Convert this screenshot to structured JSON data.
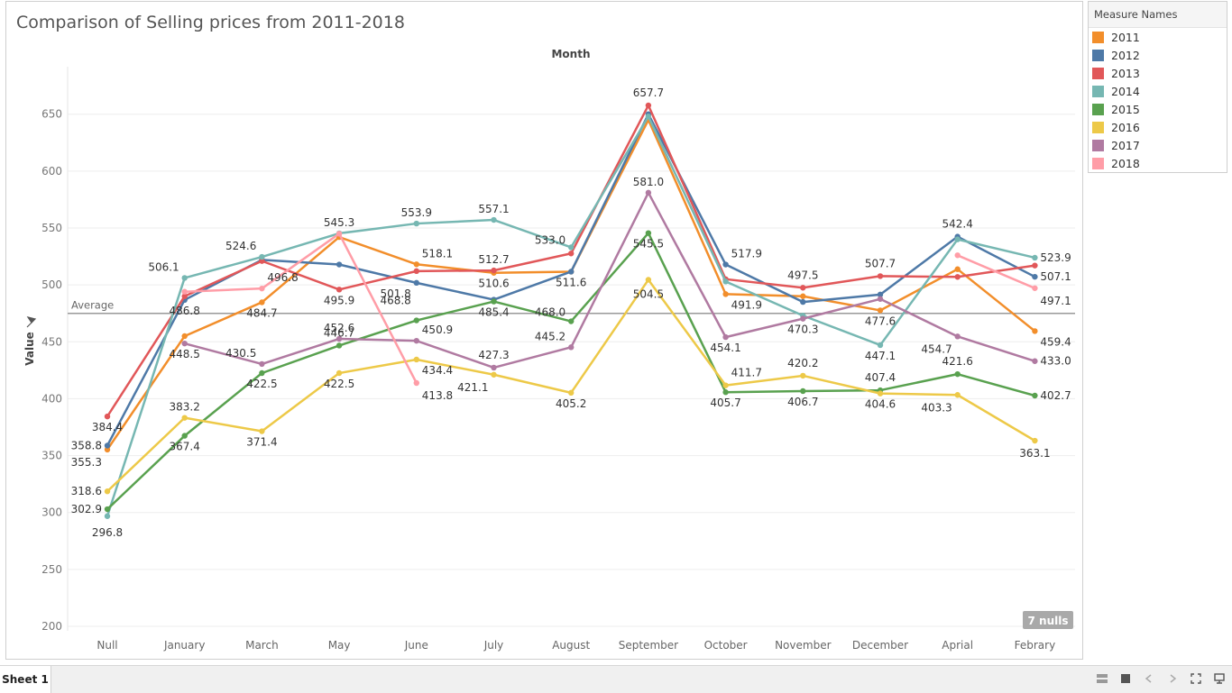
{
  "title": "Comparison of Selling prices from 2011-2018",
  "sheet_tab": "Sheet 1",
  "null_badge": "7 nulls",
  "legend": {
    "title": "Measure Names",
    "items": [
      {
        "label": "2011",
        "color": "#f28e2b"
      },
      {
        "label": "2012",
        "color": "#4e79a7"
      },
      {
        "label": "2013",
        "color": "#e15759"
      },
      {
        "label": "2014",
        "color": "#76b7b2"
      },
      {
        "label": "2015",
        "color": "#59a14f"
      },
      {
        "label": "2016",
        "color": "#edc948"
      },
      {
        "label": "2017",
        "color": "#b07aa1"
      },
      {
        "label": "2018",
        "color": "#ff9da7"
      }
    ]
  },
  "bottom_icons": [
    "grid-view-icon",
    "stop-icon",
    "first-page-icon",
    "last-page-icon",
    "fit-icon",
    "presentation-icon"
  ],
  "chart_data": {
    "type": "line",
    "xlabel": "Month",
    "ylabel": "Value",
    "ylim": [
      200,
      680
    ],
    "yticks": [
      200,
      250,
      300,
      350,
      400,
      450,
      500,
      550,
      600,
      650
    ],
    "grid": true,
    "reference_line": {
      "label": "Average",
      "value": 475
    },
    "categories": [
      "Null",
      "January",
      "March",
      "May",
      "June",
      "July",
      "August",
      "September",
      "October",
      "November",
      "December",
      "Aprial",
      "Febrary"
    ],
    "series": [
      {
        "name": "2011",
        "color": "#f28e2b",
        "values": [
          355.3,
          455,
          484.7,
          542,
          518.1,
          510.6,
          511.6,
          645,
          491.9,
          490,
          477.6,
          513.8,
          459.4
        ]
      },
      {
        "name": "2012",
        "color": "#4e79a7",
        "values": [
          358.8,
          486.8,
          522,
          517.9,
          501.8,
          487,
          511.6,
          650,
          517.9,
          485,
          491.5,
          542.4,
          507.1
        ]
      },
      {
        "name": "2013",
        "color": "#e15759",
        "values": [
          384.4,
          490,
          521,
          495.9,
          512.1,
          512.7,
          527.6,
          657.7,
          505,
          497.5,
          507.7,
          507,
          517
        ]
      },
      {
        "name": "2014",
        "color": "#76b7b2",
        "values": [
          296.8,
          506.1,
          524.6,
          545.3,
          553.9,
          557.1,
          533.0,
          648,
          503,
          473,
          447.1,
          540,
          523.9
        ]
      },
      {
        "name": "2015",
        "color": "#59a14f",
        "values": [
          302.9,
          367.4,
          422.5,
          446.7,
          468.8,
          485.4,
          468.0,
          545.5,
          405.7,
          406.7,
          407.4,
          421.6,
          402.7
        ]
      },
      {
        "name": "2016",
        "color": "#edc948",
        "values": [
          318.6,
          383.2,
          371.4,
          422.5,
          434.4,
          421.1,
          405.2,
          504.5,
          411.7,
          420.2,
          404.6,
          403.3,
          363.1
        ]
      },
      {
        "name": "2017",
        "color": "#b07aa1",
        "values": [
          null,
          448.5,
          430.5,
          452.6,
          450.9,
          427.3,
          445.2,
          581.0,
          454.1,
          470.3,
          487.6,
          454.7,
          433.0
        ]
      },
      {
        "name": "2018",
        "color": "#ff9da7",
        "values": [
          null,
          494,
          496.8,
          545,
          413.8,
          null,
          null,
          null,
          null,
          null,
          null,
          526,
          497.1
        ]
      }
    ],
    "labels": [
      {
        "text": "384.4",
        "cat": 0,
        "v": 384.4,
        "anchor": "middle",
        "dy": 16
      },
      {
        "text": "358.8",
        "cat": 0,
        "v": 358.8,
        "anchor": "end",
        "dy": 4
      },
      {
        "text": "355.3",
        "cat": 0,
        "v": 355.3,
        "anchor": "end",
        "dy": 18
      },
      {
        "text": "318.6",
        "cat": 0,
        "v": 318.6,
        "anchor": "end",
        "dy": 4
      },
      {
        "text": "302.9",
        "cat": 0,
        "v": 302.9,
        "anchor": "end",
        "dy": 4
      },
      {
        "text": "296.8",
        "cat": 0,
        "v": 296.8,
        "anchor": "middle",
        "dy": 22
      },
      {
        "text": "506.1",
        "cat": 1,
        "v": 506.1,
        "anchor": "end",
        "dy": -8
      },
      {
        "text": "486.8",
        "cat": 1,
        "v": 486.8,
        "anchor": "middle",
        "dy": 16
      },
      {
        "text": "448.5",
        "cat": 1,
        "v": 448.5,
        "anchor": "middle",
        "dy": 16
      },
      {
        "text": "383.2",
        "cat": 1,
        "v": 383.2,
        "anchor": "middle",
        "dy": -8
      },
      {
        "text": "367.4",
        "cat": 1,
        "v": 367.4,
        "anchor": "middle",
        "dy": 16
      },
      {
        "text": "524.6",
        "cat": 2,
        "v": 524.6,
        "anchor": "end",
        "dy": -8
      },
      {
        "text": "496.8",
        "cat": 2,
        "v": 496.8,
        "anchor": "start",
        "dy": -8
      },
      {
        "text": "484.7",
        "cat": 2,
        "v": 484.7,
        "anchor": "middle",
        "dy": 16
      },
      {
        "text": "430.5",
        "cat": 2,
        "v": 430.5,
        "anchor": "end",
        "dy": -8
      },
      {
        "text": "422.5",
        "cat": 2,
        "v": 422.5,
        "anchor": "middle",
        "dy": 16
      },
      {
        "text": "371.4",
        "cat": 2,
        "v": 371.4,
        "anchor": "middle",
        "dy": 16
      },
      {
        "text": "545.3",
        "cat": 3,
        "v": 545.3,
        "anchor": "middle",
        "dy": -8
      },
      {
        "text": "495.9",
        "cat": 3,
        "v": 495.9,
        "anchor": "middle",
        "dy": 16
      },
      {
        "text": "452.6",
        "cat": 3,
        "v": 452.6,
        "anchor": "middle",
        "dy": -8
      },
      {
        "text": "446.7",
        "cat": 3,
        "v": 446.7,
        "anchor": "middle",
        "dy": -10
      },
      {
        "text": "422.5",
        "cat": 3,
        "v": 422.5,
        "anchor": "middle",
        "dy": 16
      },
      {
        "text": "553.9",
        "cat": 4,
        "v": 553.9,
        "anchor": "middle",
        "dy": -8
      },
      {
        "text": "518.1",
        "cat": 4,
        "v": 518.1,
        "anchor": "start",
        "dy": -8
      },
      {
        "text": "501.8",
        "cat": 4,
        "v": 501.8,
        "anchor": "end",
        "dy": 16
      },
      {
        "text": "468.8",
        "cat": 4,
        "v": 468.8,
        "anchor": "end",
        "dy": -18
      },
      {
        "text": "450.9",
        "cat": 4,
        "v": 450.9,
        "anchor": "start",
        "dy": -8
      },
      {
        "text": "434.4",
        "cat": 4,
        "v": 434.4,
        "anchor": "start",
        "dy": 16
      },
      {
        "text": "413.8",
        "cat": 4,
        "v": 413.8,
        "anchor": "start",
        "dy": 18
      },
      {
        "text": "557.1",
        "cat": 5,
        "v": 557.1,
        "anchor": "middle",
        "dy": -8
      },
      {
        "text": "512.7",
        "cat": 5,
        "v": 512.7,
        "anchor": "middle",
        "dy": -8
      },
      {
        "text": "510.6",
        "cat": 5,
        "v": 510.6,
        "anchor": "middle",
        "dy": 16
      },
      {
        "text": "485.4",
        "cat": 5,
        "v": 485.4,
        "anchor": "middle",
        "dy": 16
      },
      {
        "text": "427.3",
        "cat": 5,
        "v": 427.3,
        "anchor": "middle",
        "dy": -10
      },
      {
        "text": "421.1",
        "cat": 5,
        "v": 421.1,
        "anchor": "end",
        "dy": 18
      },
      {
        "text": "533.0",
        "cat": 6,
        "v": 533.0,
        "anchor": "end",
        "dy": -4
      },
      {
        "text": "511.6",
        "cat": 6,
        "v": 511.6,
        "anchor": "middle",
        "dy": 16
      },
      {
        "text": "468.0",
        "cat": 6,
        "v": 468.0,
        "anchor": "end",
        "dy": -6
      },
      {
        "text": "445.2",
        "cat": 6,
        "v": 445.2,
        "anchor": "end",
        "dy": -8
      },
      {
        "text": "405.2",
        "cat": 6,
        "v": 405.2,
        "anchor": "middle",
        "dy": 16
      },
      {
        "text": "657.7",
        "cat": 7,
        "v": 657.7,
        "anchor": "middle",
        "dy": -10
      },
      {
        "text": "581.0",
        "cat": 7,
        "v": 581.0,
        "anchor": "middle",
        "dy": -8
      },
      {
        "text": "545.5",
        "cat": 7,
        "v": 545.5,
        "anchor": "middle",
        "dy": 16
      },
      {
        "text": "504.5",
        "cat": 7,
        "v": 504.5,
        "anchor": "middle",
        "dy": 20
      },
      {
        "text": "517.9",
        "cat": 8,
        "v": 517.9,
        "anchor": "start",
        "dy": -8
      },
      {
        "text": "491.9",
        "cat": 8,
        "v": 491.9,
        "anchor": "start",
        "dy": 16
      },
      {
        "text": "454.1",
        "cat": 8,
        "v": 454.1,
        "anchor": "middle",
        "dy": 16
      },
      {
        "text": "411.7",
        "cat": 8,
        "v": 411.7,
        "anchor": "start",
        "dy": -10
      },
      {
        "text": "405.7",
        "cat": 8,
        "v": 405.7,
        "anchor": "middle",
        "dy": 16
      },
      {
        "text": "497.5",
        "cat": 9,
        "v": 497.5,
        "anchor": "middle",
        "dy": -10
      },
      {
        "text": "470.3",
        "cat": 9,
        "v": 470.3,
        "anchor": "middle",
        "dy": 16
      },
      {
        "text": "420.2",
        "cat": 9,
        "v": 420.2,
        "anchor": "middle",
        "dy": -10
      },
      {
        "text": "406.7",
        "cat": 9,
        "v": 406.7,
        "anchor": "middle",
        "dy": 16
      },
      {
        "text": "507.7",
        "cat": 10,
        "v": 507.7,
        "anchor": "middle",
        "dy": -10
      },
      {
        "text": "477.6",
        "cat": 10,
        "v": 477.6,
        "anchor": "middle",
        "dy": 16
      },
      {
        "text": "447.1",
        "cat": 10,
        "v": 447.1,
        "anchor": "middle",
        "dy": 16
      },
      {
        "text": "407.4",
        "cat": 10,
        "v": 407.4,
        "anchor": "middle",
        "dy": -10
      },
      {
        "text": "404.6",
        "cat": 10,
        "v": 404.6,
        "anchor": "middle",
        "dy": 16
      },
      {
        "text": "542.4",
        "cat": 11,
        "v": 542.4,
        "anchor": "middle",
        "dy": -10
      },
      {
        "text": "454.7",
        "cat": 11,
        "v": 454.7,
        "anchor": "end",
        "dy": 18
      },
      {
        "text": "421.6",
        "cat": 11,
        "v": 421.6,
        "anchor": "middle",
        "dy": -10
      },
      {
        "text": "403.3",
        "cat": 11,
        "v": 403.3,
        "anchor": "end",
        "dy": 18
      },
      {
        "text": "523.9",
        "cat": 12,
        "v": 523.9,
        "anchor": "start",
        "dy": 4
      },
      {
        "text": "507.1",
        "cat": 12,
        "v": 507.1,
        "anchor": "start",
        "dy": 4
      },
      {
        "text": "497.1",
        "cat": 12,
        "v": 497.1,
        "anchor": "start",
        "dy": 18
      },
      {
        "text": "459.4",
        "cat": 12,
        "v": 459.4,
        "anchor": "start",
        "dy": 16
      },
      {
        "text": "433.0",
        "cat": 12,
        "v": 433.0,
        "anchor": "start",
        "dy": 4
      },
      {
        "text": "402.7",
        "cat": 12,
        "v": 402.7,
        "anchor": "start",
        "dy": 4
      },
      {
        "text": "363.1",
        "cat": 12,
        "v": 363.1,
        "anchor": "middle",
        "dy": 18
      }
    ]
  }
}
